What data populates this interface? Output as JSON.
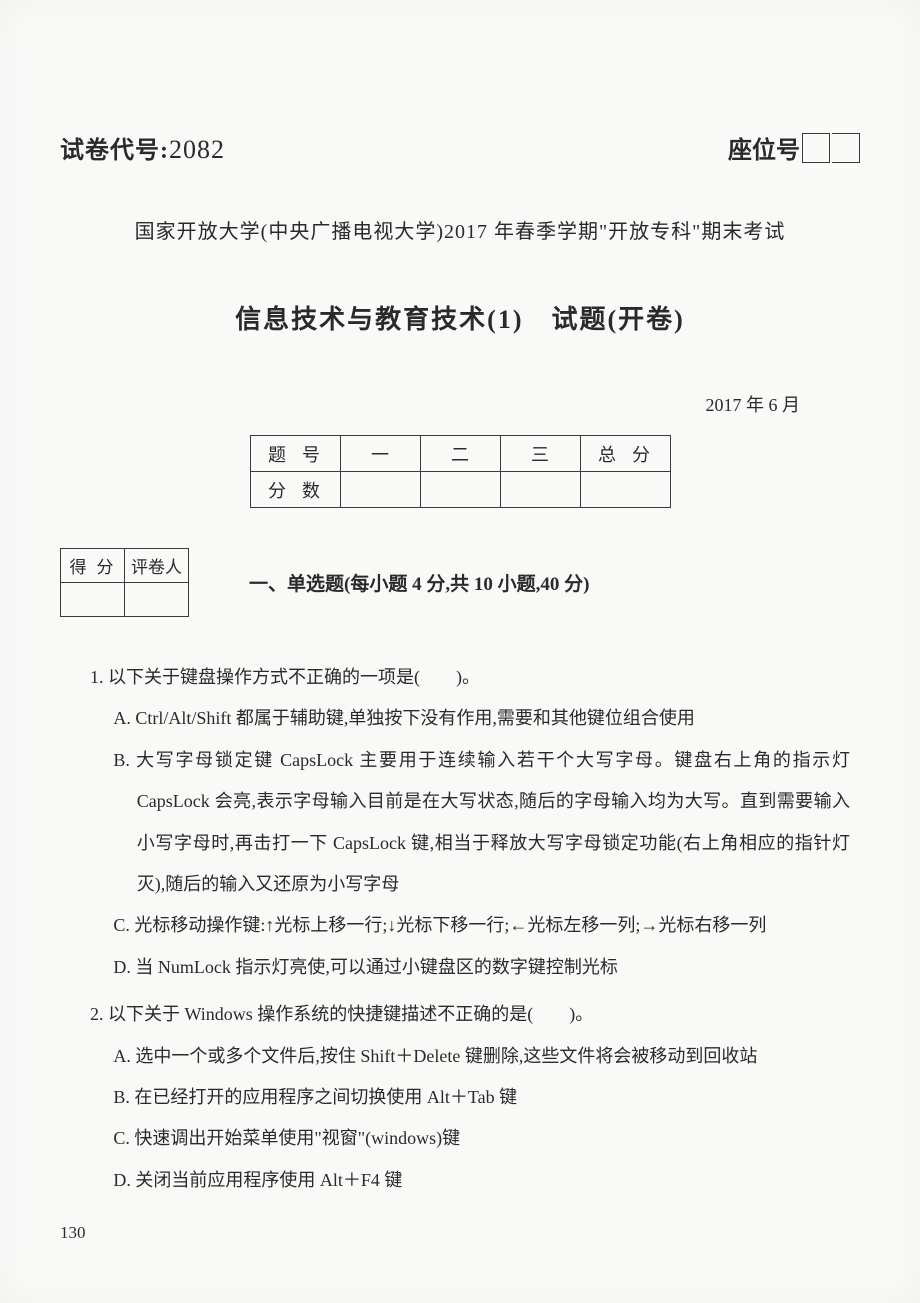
{
  "header": {
    "code_label": "试卷代号",
    "code_value": "2082",
    "seat_label": "座位号"
  },
  "university_line": "国家开放大学(中央广播电视大学)2017 年春季学期\"开放专科\"期末考试",
  "course_line": "信息技术与教育技术(1)　试题(开卷)",
  "date_line": "2017 年 6 月",
  "summary_table": {
    "row1_label": "题号",
    "cols": [
      "一",
      "二",
      "三"
    ],
    "total_label": "总分",
    "row2_label": "分数"
  },
  "grader_table": {
    "c1": "得分",
    "c2": "评卷人"
  },
  "section1_title": "一、单选题(每小题 4 分,共 10 小题,40 分)",
  "q1": {
    "stem": "1. 以下关于键盘操作方式不正确的一项是(　　)。",
    "A": "A. Ctrl/Alt/Shift 都属于辅助键,单独按下没有作用,需要和其他键位组合使用",
    "B": "B. 大写字母锁定键 CapsLock 主要用于连续输入若干个大写字母。键盘右上角的指示灯 CapsLock 会亮,表示字母输入目前是在大写状态,随后的字母输入均为大写。直到需要输入小写字母时,再击打一下 CapsLock 键,相当于释放大写字母锁定功能(右上角相应的指针灯灭),随后的输入又还原为小写字母",
    "C": "C. 光标移动操作键:↑光标上移一行;↓光标下移一行;←光标左移一列;→光标右移一列",
    "D": "D. 当 NumLock 指示灯亮使,可以通过小键盘区的数字键控制光标"
  },
  "q2": {
    "stem": "2. 以下关于 Windows 操作系统的快捷键描述不正确的是(　　)。",
    "A": "A. 选中一个或多个文件后,按住 Shift＋Delete 键删除,这些文件将会被移动到回收站",
    "B": "B. 在已经打开的应用程序之间切换使用 Alt＋Tab 键",
    "C": "C. 快速调出开始菜单使用\"视窗\"(windows)键",
    "D": "D. 关闭当前应用程序使用 Alt＋F4 键"
  },
  "page_number": "130"
}
